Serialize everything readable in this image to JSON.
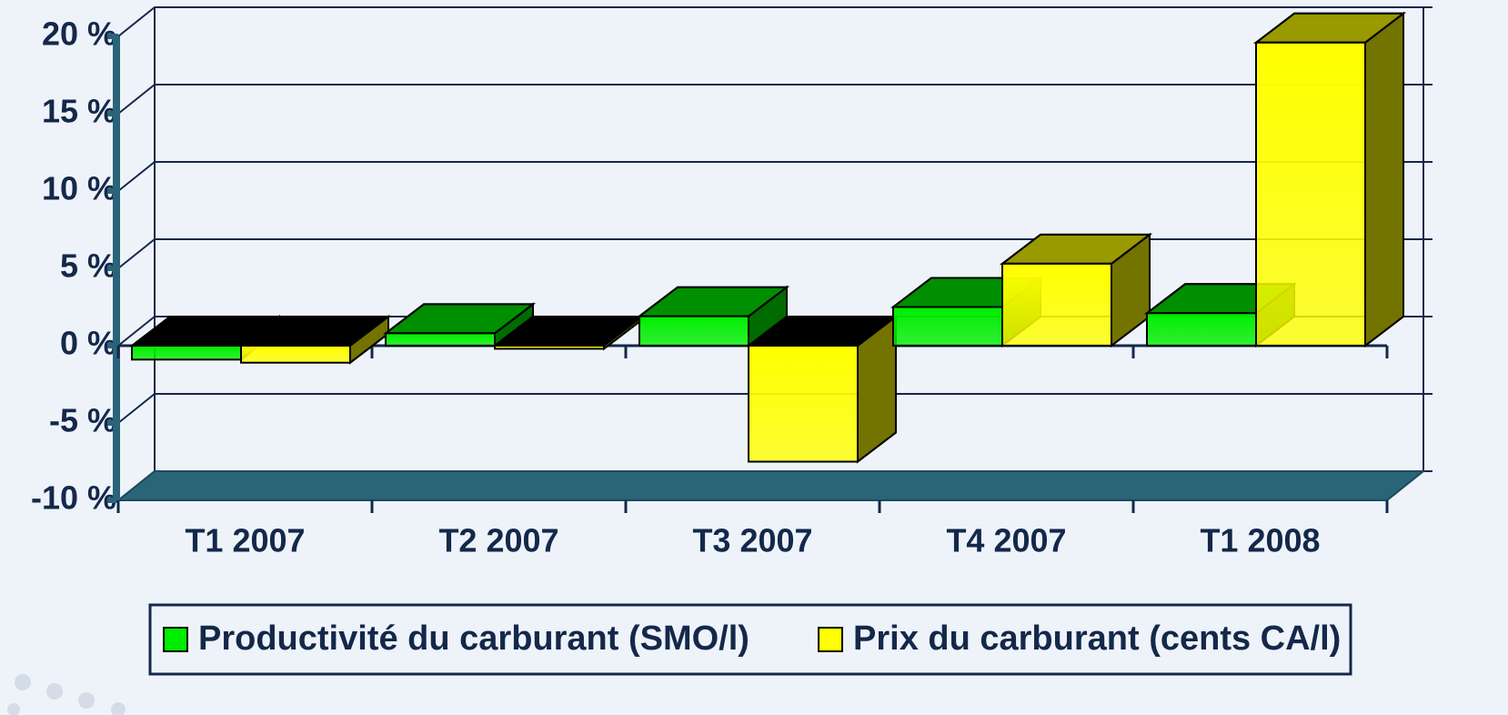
{
  "chart_data": {
    "type": "bar3d",
    "categories": [
      "T1 2007",
      "T2 2007",
      "T3 2007",
      "T4 2007",
      "T1 2008"
    ],
    "series": [
      {
        "name": "Productivité du carburant (SMO/l)",
        "color": "#00ee00",
        "values": [
          -0.9,
          0.8,
          1.9,
          2.5,
          2.1
        ]
      },
      {
        "name": "Prix du carburant (cents CA/l)",
        "color": "#ffff00",
        "values": [
          -1.1,
          -0.2,
          -7.5,
          5.3,
          19.6
        ]
      }
    ],
    "ylim": [
      -10,
      20
    ],
    "yticks": [
      {
        "value": -10,
        "label": "-10 %"
      },
      {
        "value": -5,
        "label": "-5 %"
      },
      {
        "value": 0,
        "label": "0 %"
      },
      {
        "value": 5,
        "label": "5 %"
      },
      {
        "value": 10,
        "label": "10 %"
      },
      {
        "value": 15,
        "label": "15 %"
      },
      {
        "value": 20,
        "label": "20 %"
      }
    ],
    "grid": true,
    "legend": "bottom"
  }
}
